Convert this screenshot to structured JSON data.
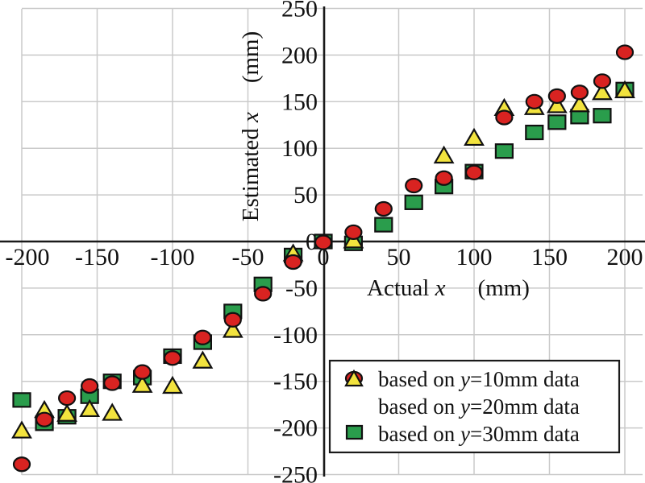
{
  "chart_data": {
    "type": "scatter",
    "grid": true,
    "background": "#ffffff",
    "grid_color": "#cacaca",
    "axis_color": "#1a1a1a",
    "x_axis": {
      "label_prefix": "Actual ",
      "label_symbol": "x",
      "label_unit": "(mm)",
      "min": -200,
      "max": 200,
      "ticks": [
        -200,
        -150,
        -100,
        -50,
        0,
        50,
        100,
        150,
        200
      ]
    },
    "y_axis": {
      "label_prefix": "Estimated ",
      "label_symbol": "x",
      "label_unit": "(mm)",
      "min": -250,
      "max": 250,
      "ticks": [
        -250,
        -200,
        -150,
        -100,
        -50,
        0,
        50,
        100,
        150,
        200,
        250
      ]
    },
    "series": [
      {
        "name": "based on y=10mm data",
        "marker": "circle",
        "color": "#d92321",
        "points": [
          [
            -200,
            -239
          ],
          [
            -185,
            -191
          ],
          [
            -170,
            -168
          ],
          [
            -155,
            -155
          ],
          [
            -140,
            -152
          ],
          [
            -120,
            -140
          ],
          [
            -100,
            -125
          ],
          [
            -80,
            -103
          ],
          [
            -60,
            -84
          ],
          [
            -40,
            -56
          ],
          [
            -20,
            -22
          ],
          [
            0,
            -1
          ],
          [
            20,
            10
          ],
          [
            40,
            35
          ],
          [
            60,
            60
          ],
          [
            80,
            68
          ],
          [
            100,
            74
          ],
          [
            120,
            133
          ],
          [
            140,
            150
          ],
          [
            155,
            156
          ],
          [
            170,
            160
          ],
          [
            185,
            172
          ],
          [
            200,
            203
          ]
        ]
      },
      {
        "name": "based on y=20mm data",
        "marker": "triangle",
        "color": "#f2e33e",
        "points": [
          [
            -200,
            -203
          ],
          [
            -185,
            -181
          ],
          [
            -170,
            -185
          ],
          [
            -155,
            -180
          ],
          [
            -140,
            -184
          ],
          [
            -120,
            -154
          ],
          [
            -100,
            -155
          ],
          [
            -80,
            -128
          ],
          [
            -60,
            -95
          ],
          [
            -20,
            -13
          ],
          [
            20,
            1
          ],
          [
            80,
            92
          ],
          [
            100,
            111
          ],
          [
            120,
            143
          ],
          [
            140,
            144
          ],
          [
            155,
            146
          ],
          [
            170,
            147
          ],
          [
            185,
            160
          ],
          [
            200,
            162
          ]
        ]
      },
      {
        "name": "based on y=30mm data",
        "marker": "square",
        "color": "#2a9d4c",
        "points": [
          [
            -200,
            -170
          ],
          [
            -185,
            -195
          ],
          [
            -170,
            -188
          ],
          [
            -155,
            -166
          ],
          [
            -140,
            -150
          ],
          [
            -120,
            -146
          ],
          [
            -100,
            -123
          ],
          [
            -80,
            -108
          ],
          [
            -60,
            -75
          ],
          [
            -40,
            -46
          ],
          [
            -20,
            -15
          ],
          [
            0,
            0
          ],
          [
            20,
            -2
          ],
          [
            40,
            18
          ],
          [
            60,
            42
          ],
          [
            80,
            59
          ],
          [
            100,
            75
          ],
          [
            120,
            97
          ],
          [
            140,
            117
          ],
          [
            155,
            128
          ],
          [
            170,
            134
          ],
          [
            185,
            135
          ],
          [
            200,
            163
          ]
        ]
      }
    ],
    "legend": {
      "position": "bottom-right",
      "items": [
        {
          "prefix": "based on ",
          "symbol": "y",
          "suffix": "=10mm data",
          "full": "based on y=10mm data"
        },
        {
          "prefix": "based on ",
          "symbol": "y",
          "suffix": "=20mm data",
          "full": "based on y=20mm data"
        },
        {
          "prefix": "based on ",
          "symbol": "y",
          "suffix": "=30mm data",
          "full": "based on y=30mm data"
        }
      ]
    }
  }
}
